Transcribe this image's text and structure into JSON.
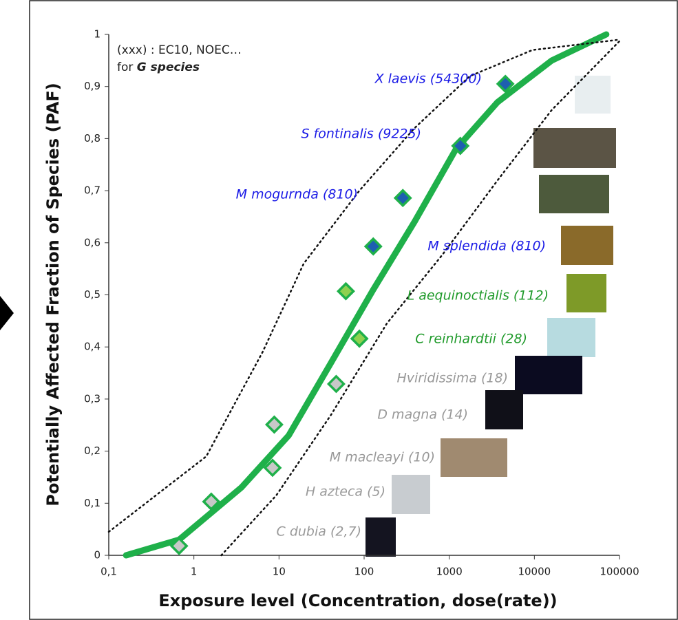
{
  "chart_data": {
    "type": "line",
    "x_label": "Exposure level (Concentration, dose(rate))",
    "y_label": "Potentially Affected Fraction of Species (PAF)",
    "note": [
      "(xxx) : EC10, NOEC…",
      "for",
      "G species"
    ],
    "xscale": "log",
    "xlim": [
      0.1,
      100000
    ],
    "ylim": [
      0,
      1
    ],
    "xticks": [
      {
        "value": 0.1,
        "label": "0,1"
      },
      1,
      10,
      100,
      1000,
      10000,
      100000
    ],
    "yticks": [
      0,
      {
        "value": 0.1,
        "label": "0,1"
      },
      {
        "value": 0.2,
        "label": "0,2"
      },
      {
        "value": 0.3,
        "label": "0,3"
      },
      {
        "value": 0.4,
        "label": "0,4"
      },
      {
        "value": 0.5,
        "label": "0,5"
      },
      {
        "value": 0.6,
        "label": "0,6"
      },
      {
        "value": 0.7,
        "label": "0,7"
      },
      {
        "value": 0.8,
        "label": "0,8"
      },
      {
        "value": 0.9,
        "label": "0,9"
      },
      1
    ],
    "series": [
      {
        "color": "#1fb04a",
        "style": "solid",
        "x": [
          0.16,
          0.67,
          3.6,
          13,
          41,
          128,
          390,
          1200,
          3700,
          16000,
          70000
        ],
        "values": [
          0,
          0.03,
          0.13,
          0.23,
          0.37,
          0.51,
          0.64,
          0.78,
          0.87,
          0.95,
          1
        ]
      },
      {
        "color": "#111111",
        "style": "dotted",
        "x": [
          0.1,
          1.4,
          6.4,
          19.5,
          88,
          390,
          1750,
          9500,
          100000
        ],
        "values": [
          0.045,
          0.19,
          0.39,
          0.56,
          0.7,
          0.82,
          0.92,
          0.97,
          0.99
        ]
      },
      {
        "color": "#111111",
        "style": "dotted",
        "x": [
          2.1,
          9.3,
          41,
          185,
          830,
          3700,
          16000,
          100000
        ],
        "values": [
          0,
          0.115,
          0.27,
          0.445,
          0.577,
          0.72,
          0.855,
          0.987
        ]
      }
    ],
    "points": {
      "x": [
        0.67,
        1.6,
        8.4,
        8.8,
        47,
        88,
        61,
        128,
        285,
        1350,
        4560
      ],
      "values": [
        0.018,
        0.103,
        0.168,
        0.251,
        0.329,
        0.416,
        0.507,
        0.593,
        0.686,
        0.786,
        0.905
      ],
      "colors": [
        "#c8c8c8",
        "#c8c8c8",
        "#c8c8c8",
        "#c8c8c8",
        "#c8c8c8",
        "#8fd14f",
        "#8fd14f",
        "#1e5fb0",
        "#1e5fb0",
        "#1e5fb0",
        "#1e5fb0"
      ]
    },
    "annotations": [
      {
        "text": "X laevis (54300)",
        "color": "#1a1ae6"
      },
      {
        "text": "S fontinalis (9225)",
        "color": "#1a1ae6"
      },
      {
        "text": "M mogurnda (810)",
        "color": "#1a1ae6"
      },
      {
        "text": "M splendida (810)",
        "color": "#1a1ae6"
      },
      {
        "text": "L aequinoctialis (112)",
        "color": "#1f9a2a"
      },
      {
        "text": "C reinhardtii (28)",
        "color": "#1f9a2a"
      },
      {
        "text": "Hviridissima (18)",
        "color": "#999999"
      },
      {
        "text": "D magna (14)",
        "color": "#999999"
      },
      {
        "text": "M macleayi (10)",
        "color": "#999999"
      },
      {
        "text": "H azteca (5)",
        "color": "#999999"
      },
      {
        "text": "C dubia (2,7)",
        "color": "#999999"
      }
    ]
  }
}
